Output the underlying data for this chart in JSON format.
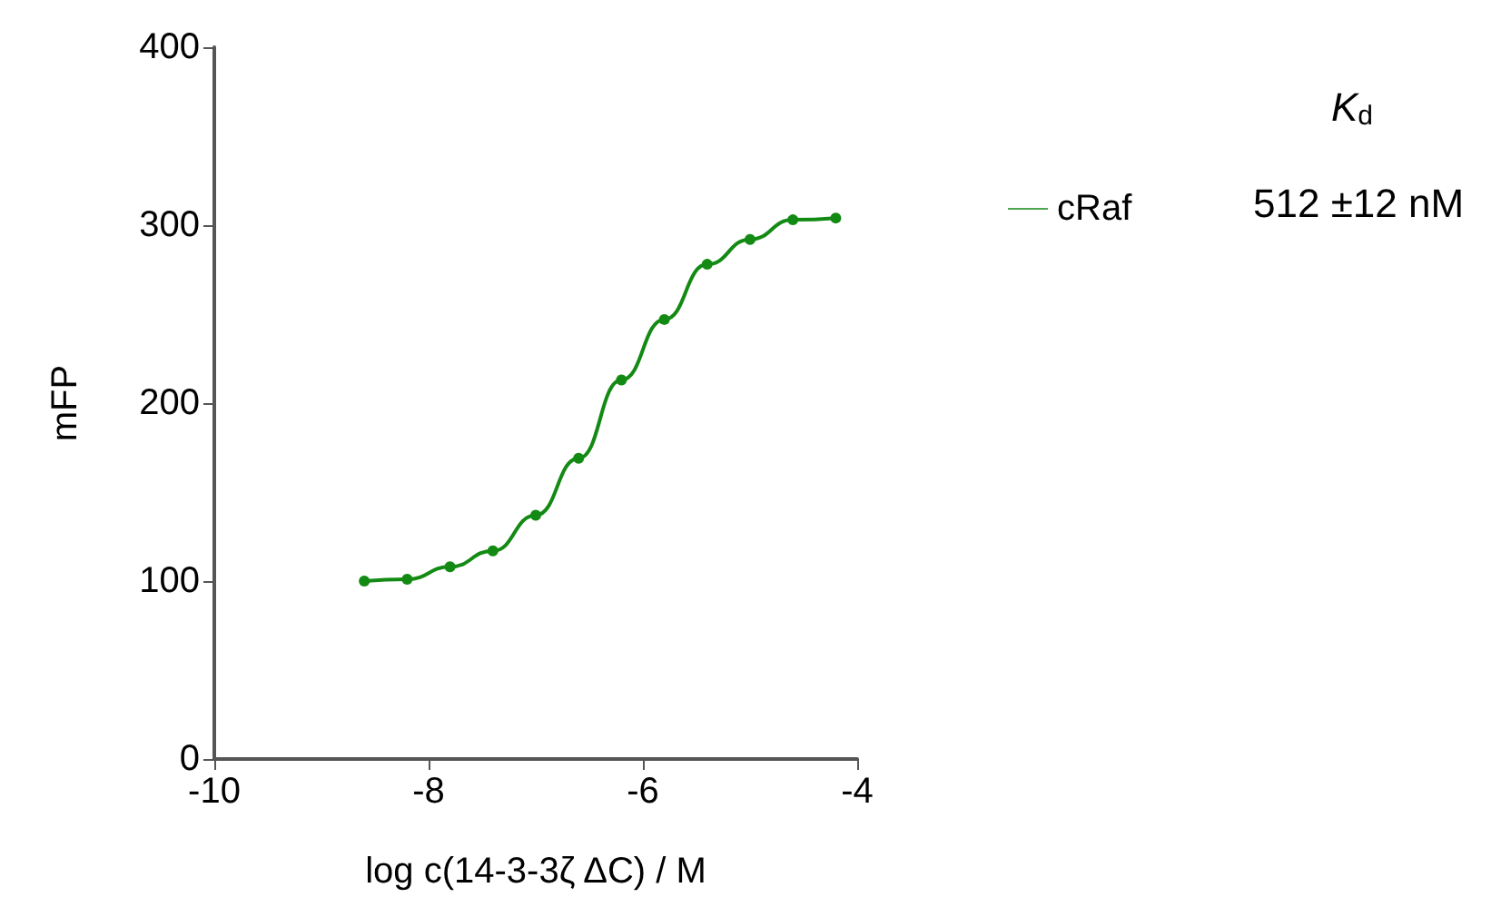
{
  "chart_data": {
    "type": "line",
    "xlabel": "log c(14-3-3ζ ΔC) / M",
    "ylabel": "mFP",
    "legend_title": "K$_{d}$",
    "annotations": [
      "512 ±12 nM"
    ],
    "series": [
      {
        "name": "cRaf",
        "color": "#138a13",
        "x": [
          -8.6,
          -8.2,
          -7.8,
          -7.4,
          -7.0,
          -6.6,
          -6.2,
          -5.8,
          -5.4,
          -5.0,
          -4.6,
          -4.2
        ],
        "values": [
          100,
          101,
          108,
          117,
          137,
          169,
          213,
          247,
          278,
          292,
          303,
          304
        ]
      }
    ],
    "xlim": [
      -10,
      -4
    ],
    "xticks": [
      -10,
      -8,
      -6,
      -4
    ],
    "ylim": [
      0,
      400
    ],
    "yticks": [
      0,
      100,
      200,
      300,
      400
    ],
    "grid": false,
    "legend": "top right",
    "marker": "circle",
    "line_style": "solid"
  }
}
